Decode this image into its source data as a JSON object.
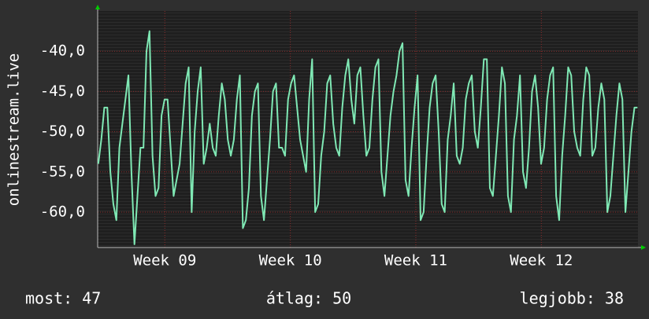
{
  "chart_data": {
    "type": "line",
    "ylabel": "onlinestream.live",
    "color": "#7fe8b4",
    "xlim": [
      8.465,
      12.77
    ],
    "xticks": [
      {
        "value": 9,
        "label": "Week 09"
      },
      {
        "value": 10,
        "label": "Week 10"
      },
      {
        "value": 11,
        "label": "Week 11"
      },
      {
        "value": 12,
        "label": "Week 12"
      }
    ],
    "ylim": [
      -64.4,
      -35
    ],
    "yticks": [
      {
        "value": -60,
        "label": "-60,0"
      },
      {
        "value": -55,
        "label": "-55,0"
      },
      {
        "value": -50,
        "label": "-50,0"
      },
      {
        "value": -45,
        "label": "-45,0"
      },
      {
        "value": -40,
        "label": "-40,0"
      }
    ],
    "grid": true,
    "stats": [
      "most: 47",
      "átlag: 50",
      "legjobb: 38"
    ],
    "x": [
      8.47,
      8.494,
      8.518,
      8.542,
      8.566,
      8.59,
      8.614,
      8.638,
      8.662,
      8.686,
      8.71,
      8.734,
      8.758,
      8.782,
      8.806,
      8.83,
      8.854,
      8.878,
      8.902,
      8.926,
      8.95,
      8.974,
      8.998,
      9.022,
      9.046,
      9.07,
      9.094,
      9.118,
      9.142,
      9.166,
      9.19,
      9.214,
      9.238,
      9.262,
      9.286,
      9.31,
      9.334,
      9.358,
      9.382,
      9.406,
      9.43,
      9.454,
      9.478,
      9.502,
      9.526,
      9.55,
      9.574,
      9.598,
      9.622,
      9.646,
      9.67,
      9.694,
      9.718,
      9.742,
      9.766,
      9.79,
      9.814,
      9.838,
      9.862,
      9.886,
      9.91,
      9.934,
      9.958,
      9.982,
      10.006,
      10.03,
      10.054,
      10.078,
      10.102,
      10.126,
      10.15,
      10.174,
      10.198,
      10.222,
      10.246,
      10.27,
      10.294,
      10.318,
      10.342,
      10.366,
      10.39,
      10.414,
      10.438,
      10.462,
      10.486,
      10.51,
      10.534,
      10.558,
      10.582,
      10.606,
      10.63,
      10.654,
      10.678,
      10.702,
      10.726,
      10.75,
      10.774,
      10.798,
      10.822,
      10.846,
      10.87,
      10.894,
      10.918,
      10.942,
      10.966,
      10.99,
      11.014,
      11.038,
      11.062,
      11.086,
      11.11,
      11.134,
      11.158,
      11.182,
      11.206,
      11.23,
      11.254,
      11.278,
      11.302,
      11.326,
      11.35,
      11.374,
      11.398,
      11.422,
      11.446,
      11.47,
      11.494,
      11.518,
      11.542,
      11.566,
      11.59,
      11.614,
      11.638,
      11.662,
      11.686,
      11.71,
      11.734,
      11.758,
      11.782,
      11.806,
      11.83,
      11.854,
      11.878,
      11.902,
      11.926,
      11.95,
      11.974,
      11.998,
      12.022,
      12.046,
      12.07,
      12.094,
      12.118,
      12.142,
      12.166,
      12.19,
      12.214,
      12.238,
      12.262,
      12.286,
      12.31,
      12.334,
      12.358,
      12.382,
      12.406,
      12.43,
      12.454,
      12.478,
      12.502,
      12.526,
      12.55,
      12.574,
      12.598,
      12.622,
      12.646,
      12.67,
      12.694,
      12.718,
      12.742,
      12.766
    ],
    "values": [
      -54,
      -51,
      -47,
      -47,
      -55,
      -59,
      -61,
      -52,
      -49,
      -46,
      -43,
      -55,
      -64,
      -58,
      -52,
      -52,
      -40,
      -37.5,
      -53,
      -58,
      -57,
      -48,
      -46,
      -46,
      -52,
      -58,
      -56,
      -54,
      -49,
      -44,
      -42,
      -60,
      -50,
      -45,
      -42,
      -54,
      -52,
      -49,
      -52,
      -53,
      -48,
      -44,
      -46,
      -51,
      -53,
      -51,
      -46,
      -43,
      -62,
      -61,
      -57,
      -48,
      -45,
      -44,
      -58,
      -61,
      -56,
      -51,
      -45,
      -44,
      -52,
      -52,
      -53,
      -46,
      -44,
      -43,
      -47,
      -51,
      -53,
      -55,
      -46,
      -41,
      -60,
      -59,
      -53,
      -50,
      -44,
      -43,
      -49,
      -52,
      -53,
      -47,
      -43,
      -41,
      -46,
      -49,
      -43,
      -42,
      -48,
      -53,
      -52,
      -46,
      -42,
      -41,
      -55,
      -58,
      -53,
      -48,
      -45,
      -43,
      -40,
      -39,
      -56,
      -58,
      -52,
      -47,
      -43,
      -61,
      -60,
      -53,
      -47,
      -44,
      -43,
      -50,
      -59,
      -60,
      -51,
      -48,
      -44,
      -53,
      -54,
      -52,
      -46,
      -44,
      -43,
      -50,
      -52,
      -47,
      -41,
      -41,
      -57,
      -58,
      -53,
      -48,
      -42,
      -44,
      -58,
      -60,
      -51,
      -48,
      -43,
      -55,
      -57,
      -52,
      -45,
      -43,
      -47,
      -54,
      -52,
      -46,
      -43,
      -42,
      -58,
      -61,
      -53,
      -48,
      -42,
      -43,
      -50,
      -52,
      -53,
      -46,
      -42,
      -43,
      -53,
      -52,
      -47,
      -44,
      -46,
      -60,
      -58,
      -53,
      -48,
      -44,
      -46,
      -60,
      -55,
      -50,
      -47,
      -47
    ]
  }
}
